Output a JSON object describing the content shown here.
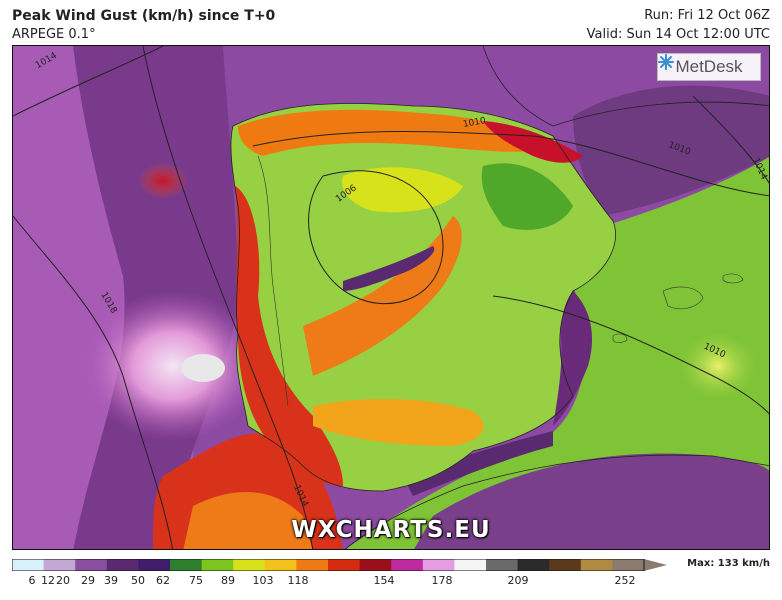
{
  "header": {
    "title": "Peak Wind Gust (km/h) since T+0",
    "model": "ARPEGE 0.1°",
    "run": "Run: Fri 12 Oct 06Z",
    "valid": "Valid: Sun 14 Oct 12:00 UTC"
  },
  "logo": {
    "text": "MetDesk",
    "icon": "metdesk-logo-icon"
  },
  "watermark": "WXCHARTS.EU",
  "isobars": [
    "1014",
    "1010",
    "1006",
    "1010",
    "1018",
    "1014",
    "1010",
    "1014"
  ],
  "colorbar": {
    "ticks": [
      "6",
      "12",
      "20",
      "29",
      "39",
      "50",
      "62",
      "75",
      "89",
      "103",
      "118",
      "154",
      "178",
      "209",
      "252"
    ],
    "max_label": "Max: 133 km/h",
    "colors": [
      "#d8f0f8",
      "#c3a8d6",
      "#8a4fa0",
      "#5a2a70",
      "#3f1d6a",
      "#2d7f2d",
      "#7dc41f",
      "#d8e21a",
      "#f2c21a",
      "#f07a12",
      "#d62a10",
      "#9a0f1a",
      "#c02aa0",
      "#e59ce0",
      "#f5f5f5",
      "#6a6a6a",
      "#2a2a2a",
      "#5a3a1a",
      "#b08a40",
      "#8a7a70"
    ]
  }
}
